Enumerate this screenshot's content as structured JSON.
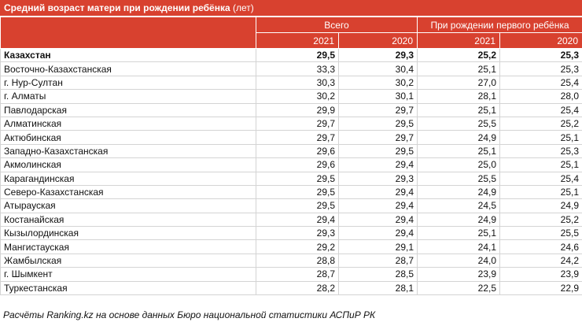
{
  "title": {
    "text": "Средний возраст матери при рождении ребёнка",
    "unit": "(лет)"
  },
  "table": {
    "groups": [
      "Всего",
      "При рождении первого ребёнка"
    ],
    "years": [
      "2021",
      "2020",
      "2021",
      "2020"
    ],
    "rows": [
      [
        "Казахстан",
        "29,5",
        "29,3",
        "25,2",
        "25,3"
      ],
      [
        "Восточно-Казахстанская",
        "33,3",
        "30,4",
        "25,1",
        "25,3"
      ],
      [
        "г. Нур-Султан",
        "30,3",
        "30,2",
        "27,0",
        "25,4"
      ],
      [
        "г. Алматы",
        "30,2",
        "30,1",
        "28,1",
        "28,0"
      ],
      [
        "Павлодарская",
        "29,9",
        "29,7",
        "25,1",
        "25,4"
      ],
      [
        "Алматинская",
        "29,7",
        "29,5",
        "25,5",
        "25,2"
      ],
      [
        "Актюбинская",
        "29,7",
        "29,7",
        "24,9",
        "25,1"
      ],
      [
        "Западно-Казахстанская",
        "29,6",
        "29,5",
        "25,1",
        "25,3"
      ],
      [
        "Акмолинская",
        "29,6",
        "29,4",
        "25,0",
        "25,1"
      ],
      [
        "Карагандинская",
        "29,5",
        "29,3",
        "25,5",
        "25,4"
      ],
      [
        "Северо-Казахстанская",
        "29,5",
        "29,4",
        "24,9",
        "25,1"
      ],
      [
        "Атырауская",
        "29,5",
        "29,4",
        "24,5",
        "24,9"
      ],
      [
        "Костанайская",
        "29,4",
        "29,4",
        "24,9",
        "25,2"
      ],
      [
        "Кызылординская",
        "29,3",
        "29,4",
        "25,1",
        "25,5"
      ],
      [
        "Мангистауская",
        "29,2",
        "29,1",
        "24,1",
        "24,6"
      ],
      [
        "Жамбылская",
        "28,8",
        "28,7",
        "24,0",
        "24,2"
      ],
      [
        "г. Шымкент",
        "28,7",
        "28,5",
        "23,9",
        "23,9"
      ],
      [
        "Туркестанская",
        "28,2",
        "28,1",
        "22,5",
        "22,9"
      ]
    ]
  },
  "footer": "Расчёты Ranking.kz на основе данных Бюро национальной статистики АСПиР РК"
}
